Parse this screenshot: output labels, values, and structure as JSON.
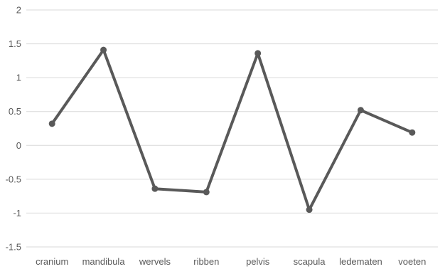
{
  "chart_data": {
    "type": "line",
    "categories": [
      "cranium",
      "mandibula",
      "wervels",
      "ribben",
      "pelvis",
      "scapula",
      "ledematen",
      "voeten"
    ],
    "series": [
      {
        "values": [
          0.32,
          1.41,
          -0.64,
          -0.69,
          1.36,
          -0.95,
          0.52,
          0.19
        ]
      }
    ],
    "yticks": [
      "-1.5",
      "-1",
      "-0.5",
      "0",
      "0.5",
      "1",
      "1.5",
      "2"
    ],
    "ylim": [
      -1.5,
      2
    ],
    "grid": true,
    "legend": "none",
    "colors": {
      "series": "#595959",
      "grid": "#d9d9d9",
      "text": "#595959"
    }
  }
}
